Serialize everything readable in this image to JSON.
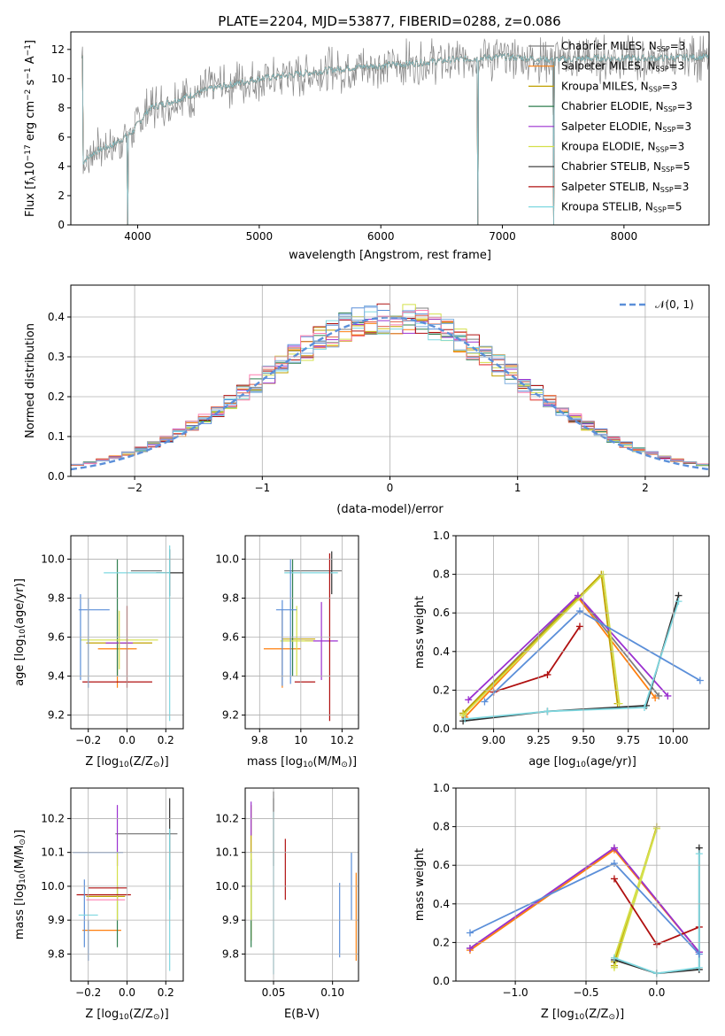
{
  "figure": {
    "title": "PLATE=2204, MJD=53877, FIBERID=0288, z=0.086"
  },
  "models": [
    {
      "name": "Chabrier MILES",
      "nssp": "3",
      "color": "#7f7f7f"
    },
    {
      "name": "Salpeter MILES",
      "nssp": "3",
      "color": "#ff7f0e"
    },
    {
      "name": "Kroupa MILES",
      "nssp": "3",
      "color": "#c0a000"
    },
    {
      "name": "Chabrier ELODIE",
      "nssp": "3",
      "color": "#2f7f4f"
    },
    {
      "name": "Salpeter ELODIE",
      "nssp": "3",
      "color": "#9b30d0"
    },
    {
      "name": "Kroupa ELODIE",
      "nssp": "3",
      "color": "#d4e04a"
    },
    {
      "name": "Chabrier STELIB",
      "nssp": "5",
      "color": "#303030"
    },
    {
      "name": "Salpeter STELIB",
      "nssp": "3",
      "color": "#b01010"
    },
    {
      "name": "Kroupa STELIB",
      "nssp": "5",
      "color": "#7fd8e0"
    }
  ],
  "chart_data": [
    {
      "id": "spectrum",
      "type": "line",
      "xlabel": "wavelength [Angstrom, rest frame]",
      "ylabel_parts": [
        "Flux [f",
        "λ",
        "10",
        "−17",
        " erg cm",
        "−2",
        " s",
        "−1",
        " A",
        "−1",
        "]"
      ],
      "xlim": [
        3450,
        8700
      ],
      "ylim": [
        0,
        13.2
      ],
      "xticks": [
        4000,
        5000,
        6000,
        7000,
        8000
      ],
      "yticks": [
        0,
        2,
        4,
        6,
        8,
        10,
        12
      ],
      "grid": false,
      "legend_position": "right",
      "continuum_points": [
        [
          3550,
          4.3
        ],
        [
          3650,
          5.0
        ],
        [
          3800,
          5.5
        ],
        [
          3950,
          6.3
        ],
        [
          4100,
          8.0
        ],
        [
          4300,
          8.5
        ],
        [
          4600,
          9.3
        ],
        [
          5000,
          10.0
        ],
        [
          5400,
          10.4
        ],
        [
          5800,
          10.8
        ],
        [
          6200,
          11.0
        ],
        [
          6600,
          11.3
        ],
        [
          7000,
          11.5
        ],
        [
          7400,
          11.3
        ],
        [
          7800,
          11.4
        ],
        [
          8300,
          11.4
        ],
        [
          8700,
          11.5
        ]
      ],
      "drops": [
        {
          "x": 3920,
          "y": 0
        },
        {
          "x": 6800,
          "y": 0
        },
        {
          "x": 7420,
          "y": 0
        }
      ]
    },
    {
      "id": "residual-histogram",
      "type": "bar",
      "xlabel": "(data-model)/error",
      "ylabel": "Normed distribution",
      "xlim": [
        -2.5,
        2.5
      ],
      "ylim": [
        0,
        0.48
      ],
      "xticks": [
        -2,
        -1,
        0,
        1,
        2
      ],
      "xtick_labels": [
        "−2",
        "−1",
        "0",
        "1",
        "2"
      ],
      "yticks": [
        0.0,
        0.1,
        0.2,
        0.3,
        0.4
      ],
      "grid": true,
      "reference_curve": {
        "name_parts": [
          "𝒩",
          "(0, 1)"
        ],
        "mean": 0,
        "sigma": 1,
        "color": "#5b8fd9"
      },
      "legend_position": "top-right",
      "bin_width": 0.1
    },
    {
      "id": "age-vs-Z",
      "type": "scatter",
      "xlabel_parts": [
        "Z [log",
        "10",
        "(Z/Z",
        "⊙",
        ")]"
      ],
      "ylabel_parts": [
        "age  [log",
        "10",
        "(age/yr)]"
      ],
      "xlim": [
        -0.29,
        0.29
      ],
      "ylim": [
        9.13,
        10.12
      ],
      "xticks": [
        -0.2,
        0.0,
        0.2
      ],
      "xtick_labels": [
        "−0.2",
        "0.0",
        "0.2"
      ],
      "yticks": [
        9.2,
        9.4,
        9.6,
        9.8,
        10.0
      ],
      "grid": true,
      "points": [
        {
          "model": 0,
          "x": 0.1,
          "xerr": 0.08,
          "y": 9.94,
          "yerr": 0.0
        },
        {
          "model": 1,
          "x": -0.05,
          "xerr": 0.1,
          "y": 9.54,
          "yerr": 0.2
        },
        {
          "model": 2,
          "x": -0.04,
          "xerr": 0.17,
          "y": 9.57,
          "yerr": 0.0
        },
        {
          "model": 3,
          "x": -0.05,
          "xerr": 0.0,
          "y": 9.7,
          "yerr": 0.3
        },
        {
          "model": 4,
          "x": -0.04,
          "xerr": 0.07,
          "y": 9.57,
          "yerr": 0.0
        },
        {
          "model": 5,
          "x": -0.04,
          "xerr": 0.2,
          "y": 9.585,
          "yerr": 0.15
        },
        {
          "model": 6,
          "x": 0.22,
          "xerr": 0.07,
          "y": 9.93,
          "yerr": 0.12
        },
        {
          "model": 7,
          "x": -0.05,
          "xerr": 0.18,
          "y": 9.37,
          "yerr": 0.0
        },
        {
          "model": 8,
          "x": 0.05,
          "xerr": 0.17,
          "y": 9.93,
          "yerr": 0.0
        },
        {
          "model": 9,
          "x": -0.2,
          "xerr": 0.0,
          "y": 9.57,
          "yerr": 0.23
        },
        {
          "model": 10,
          "x": -0.24,
          "xerr": 0.0,
          "y": 9.6,
          "yerr": 0.22
        },
        {
          "model": 11,
          "x": -0.17,
          "xerr": 0.08,
          "y": 9.74,
          "yerr": 0.0
        },
        {
          "model": 12,
          "x": 0.0,
          "xerr": 0.0,
          "y": 9.55,
          "yerr": 0.21
        },
        {
          "model": 13,
          "x": 0.22,
          "xerr": 0.0,
          "y": 9.62,
          "yerr": 0.45
        }
      ]
    },
    {
      "id": "age-vs-mass",
      "type": "scatter",
      "xlabel_parts": [
        "mass [log",
        "10",
        "(M/M",
        "⊙",
        ")]"
      ],
      "xlim": [
        9.73,
        10.28
      ],
      "ylim": [
        9.13,
        10.12
      ],
      "xticks": [
        9.8,
        10.0,
        10.2
      ],
      "yticks": [
        9.2,
        9.4,
        9.6,
        9.8,
        10.0
      ],
      "grid": true,
      "points": [
        {
          "model": 0,
          "x": 10.06,
          "xerr": 0.14,
          "y": 9.94,
          "yerr": 0.0
        },
        {
          "model": 1,
          "x": 9.91,
          "xerr": 0.09,
          "y": 9.54,
          "yerr": 0.2
        },
        {
          "model": 2,
          "x": 9.99,
          "xerr": 0.08,
          "y": 9.59,
          "yerr": 0.0
        },
        {
          "model": 3,
          "x": 9.96,
          "xerr": 0.0,
          "y": 9.7,
          "yerr": 0.3
        },
        {
          "model": 4,
          "x": 10.1,
          "xerr": 0.08,
          "y": 9.58,
          "yerr": 0.2
        },
        {
          "model": 5,
          "x": 9.98,
          "xerr": 0.08,
          "y": 9.58,
          "yerr": 0.18
        },
        {
          "model": 6,
          "x": 10.15,
          "xerr": 0.0,
          "y": 9.93,
          "yerr": 0.11
        },
        {
          "model": 7,
          "x": 10.02,
          "xerr": 0.05,
          "y": 9.37,
          "yerr": 0.0
        },
        {
          "model": 8,
          "x": 10.05,
          "xerr": 0.13,
          "y": 9.93,
          "yerr": 0.0
        },
        {
          "model": 9,
          "x": 9.91,
          "xerr": 0.0,
          "y": 9.57,
          "yerr": 0.22
        },
        {
          "model": 10,
          "x": 9.93,
          "xerr": 0.05,
          "y": 9.74,
          "yerr": 0.0
        },
        {
          "model": 11,
          "x": 9.95,
          "xerr": 0.0,
          "y": 9.68,
          "yerr": 0.32
        },
        {
          "model": 12,
          "x": 10.14,
          "xerr": 0.0,
          "y": 9.6,
          "yerr": 0.43
        }
      ]
    },
    {
      "id": "weight-vs-age",
      "type": "line",
      "xlabel_parts": [
        "age  [log",
        "10",
        "(age/yr)]"
      ],
      "ylabel": "mass weight",
      "xlim": [
        8.79,
        10.2
      ],
      "ylim": [
        0,
        1
      ],
      "xticks": [
        9.0,
        9.25,
        9.5,
        9.75,
        10.0
      ],
      "xtick_labels": [
        "9.00",
        "9.25",
        "9.50",
        "9.75",
        "10.00"
      ],
      "yticks": [
        0.0,
        0.2,
        0.4,
        0.6,
        0.8,
        1.0
      ],
      "grid": true,
      "series": [
        {
          "model": 0,
          "x": [
            8.83,
            9.47,
            9.92
          ],
          "y": [
            0.08,
            0.69,
            0.17
          ]
        },
        {
          "model": 1,
          "x": [
            8.84,
            9.47,
            9.9
          ],
          "y": [
            0.06,
            0.68,
            0.16
          ]
        },
        {
          "model": 2,
          "x": [
            8.83,
            9.6,
            9.69
          ],
          "y": [
            0.08,
            0.8,
            0.13
          ]
        },
        {
          "model": 4,
          "x": [
            8.86,
            9.47,
            9.97
          ],
          "y": [
            0.15,
            0.69,
            0.17
          ]
        },
        {
          "model": 5,
          "x": [
            8.83,
            9.61,
            9.7
          ],
          "y": [
            0.07,
            0.8,
            0.13
          ]
        },
        {
          "model": 6,
          "x": [
            8.83,
            9.3,
            9.85,
            10.03
          ],
          "y": [
            0.04,
            0.09,
            0.12,
            0.69
          ]
        },
        {
          "model": 7,
          "x": [
            9.0,
            9.3,
            9.48
          ],
          "y": [
            0.19,
            0.28,
            0.53
          ]
        },
        {
          "model": 8,
          "x": [
            8.84,
            9.3,
            9.84,
            10.03
          ],
          "y": [
            0.05,
            0.09,
            0.11,
            0.66
          ]
        },
        {
          "model": 9,
          "x": [
            8.95,
            9.48,
            10.15
          ],
          "y": [
            0.14,
            0.61,
            0.25
          ]
        }
      ]
    },
    {
      "id": "mass-vs-Z",
      "type": "scatter",
      "xlabel_parts": [
        "Z [log",
        "10",
        "(Z/Z",
        "⊙",
        ")]"
      ],
      "ylabel_parts": [
        "mass [log",
        "10",
        "(M/M",
        "⊙",
        ")]"
      ],
      "xlim": [
        -0.29,
        0.29
      ],
      "ylim": [
        9.72,
        10.29
      ],
      "xticks": [
        -0.2,
        0.0,
        0.2
      ],
      "xtick_labels": [
        "−0.2",
        "0.0",
        "0.2"
      ],
      "yticks": [
        9.8,
        9.9,
        10.0,
        10.1,
        10.2
      ],
      "grid": true,
      "points": [
        {
          "model": 0,
          "x": 0.1,
          "xerr": 0.16,
          "y": 10.155,
          "yerr": 0.0
        },
        {
          "model": 1,
          "x": -0.13,
          "xerr": 0.1,
          "y": 9.87,
          "yerr": 0.0
        },
        {
          "model": 2,
          "x": -0.11,
          "xerr": 0.1,
          "y": 9.97,
          "yerr": 0.0
        },
        {
          "model": 3,
          "x": -0.05,
          "xerr": 0.0,
          "y": 9.91,
          "yerr": 0.09
        },
        {
          "model": 4,
          "x": -0.05,
          "xerr": 0.0,
          "y": 10.15,
          "yerr": 0.09
        },
        {
          "model": 5,
          "x": -0.05,
          "xerr": 0.0,
          "y": 10.0,
          "yerr": 0.1
        },
        {
          "model": 6,
          "x": 0.22,
          "xerr": 0.0,
          "y": 10.11,
          "yerr": 0.15
        },
        {
          "model": 7,
          "x": -0.12,
          "xerr": 0.14,
          "y": 9.975,
          "yerr": 0.0
        },
        {
          "model": 8,
          "x": 0.22,
          "xerr": 0.0,
          "y": 9.96,
          "yerr": 0.21
        },
        {
          "model": 9,
          "x": -0.15,
          "xerr": 0.13,
          "y": 10.1,
          "yerr": 0.0
        },
        {
          "model": 10,
          "x": -0.22,
          "xerr": 0.0,
          "y": 9.92,
          "yerr": 0.1
        },
        {
          "model": 11,
          "x": -0.2,
          "xerr": 0.0,
          "y": 9.84,
          "yerr": 0.06
        },
        {
          "model": 12,
          "x": -0.1,
          "xerr": 0.1,
          "y": 9.995,
          "yerr": 0.0
        },
        {
          "model": 13,
          "x": -0.2,
          "xerr": 0.05,
          "y": 9.915,
          "yerr": 0.0
        },
        {
          "model": 14,
          "x": -0.11,
          "xerr": 0.1,
          "y": 9.96,
          "yerr": 0.0
        }
      ]
    },
    {
      "id": "mass-vs-EBV",
      "type": "scatter",
      "xlabel": "E(B-V)",
      "xlim": [
        0.026,
        0.122
      ],
      "ylim": [
        9.72,
        10.29
      ],
      "xticks": [
        0.05,
        0.1
      ],
      "xtick_labels": [
        "0.05",
        "0.10"
      ],
      "yticks": [
        9.8,
        9.9,
        10.0,
        10.1,
        10.2
      ],
      "grid": true,
      "points": [
        {
          "model": 0,
          "x": 0.05,
          "xerr": 0.0,
          "y": 10.16,
          "yerr": 0.1
        },
        {
          "model": 1,
          "x": 0.12,
          "xerr": 0.0,
          "y": 9.91,
          "yerr": 0.13
        },
        {
          "model": 2,
          "x": 0.031,
          "xerr": 0.0,
          "y": 10.04,
          "yerr": 0.2
        },
        {
          "model": 3,
          "x": 0.031,
          "xerr": 0.0,
          "y": 9.95,
          "yerr": 0.13
        },
        {
          "model": 4,
          "x": 0.031,
          "xerr": 0.0,
          "y": 10.2,
          "yerr": 0.05
        },
        {
          "model": 5,
          "x": 0.031,
          "xerr": 0.0,
          "y": 10.0,
          "yerr": 0.1
        },
        {
          "model": 6,
          "x": 0.05,
          "xerr": 0.0,
          "y": 10.25,
          "yerr": 0.03
        },
        {
          "model": 7,
          "x": 0.06,
          "xerr": 0.0,
          "y": 10.05,
          "yerr": 0.09
        },
        {
          "model": 8,
          "x": 0.05,
          "xerr": 0.0,
          "y": 9.98,
          "yerr": 0.24
        },
        {
          "model": 9,
          "x": 0.106,
          "xerr": 0.0,
          "y": 9.9,
          "yerr": 0.11
        },
        {
          "model": 10,
          "x": 0.116,
          "xerr": 0.0,
          "y": 10.0,
          "yerr": 0.1
        }
      ]
    },
    {
      "id": "weight-vs-Z",
      "type": "line",
      "xlabel_parts": [
        "Z [log",
        "10",
        "(Z/Z",
        "⊙",
        ")]"
      ],
      "ylabel": "mass weight",
      "xlim": [
        -1.42,
        0.37
      ],
      "ylim": [
        0,
        1
      ],
      "xticks": [
        -1.0,
        -0.5,
        0.0
      ],
      "xtick_labels": [
        "−1.0",
        "−0.5",
        "0.0"
      ],
      "yticks": [
        0.0,
        0.2,
        0.4,
        0.6,
        0.8,
        1.0
      ],
      "grid": true,
      "series": [
        {
          "model": 0,
          "x": [
            -1.32,
            -0.3,
            0.3
          ],
          "y": [
            0.17,
            0.69,
            0.15
          ]
        },
        {
          "model": 1,
          "x": [
            -1.32,
            -0.3,
            0.3
          ],
          "y": [
            0.16,
            0.68,
            0.15
          ]
        },
        {
          "model": 2,
          "x": [
            -0.3,
            0.0,
            -0.3
          ],
          "y": [
            0.08,
            0.8,
            0.1
          ]
        },
        {
          "model": 4,
          "x": [
            -1.32,
            -0.3,
            0.3
          ],
          "y": [
            0.17,
            0.69,
            0.15
          ]
        },
        {
          "model": 5,
          "x": [
            -0.3,
            0.0,
            -0.3
          ],
          "y": [
            0.07,
            0.79,
            0.12
          ]
        },
        {
          "model": 6,
          "x": [
            -0.3,
            0.0,
            0.3,
            0.3
          ],
          "y": [
            0.11,
            0.04,
            0.06,
            0.69
          ]
        },
        {
          "model": 7,
          "x": [
            -0.3,
            0.0,
            0.3
          ],
          "y": [
            0.53,
            0.19,
            0.28
          ]
        },
        {
          "model": 8,
          "x": [
            -0.3,
            0.0,
            0.3,
            0.3
          ],
          "y": [
            0.12,
            0.04,
            0.07,
            0.66
          ]
        },
        {
          "model": 9,
          "x": [
            -1.32,
            -0.3,
            0.3
          ],
          "y": [
            0.25,
            0.61,
            0.14
          ]
        }
      ]
    }
  ]
}
